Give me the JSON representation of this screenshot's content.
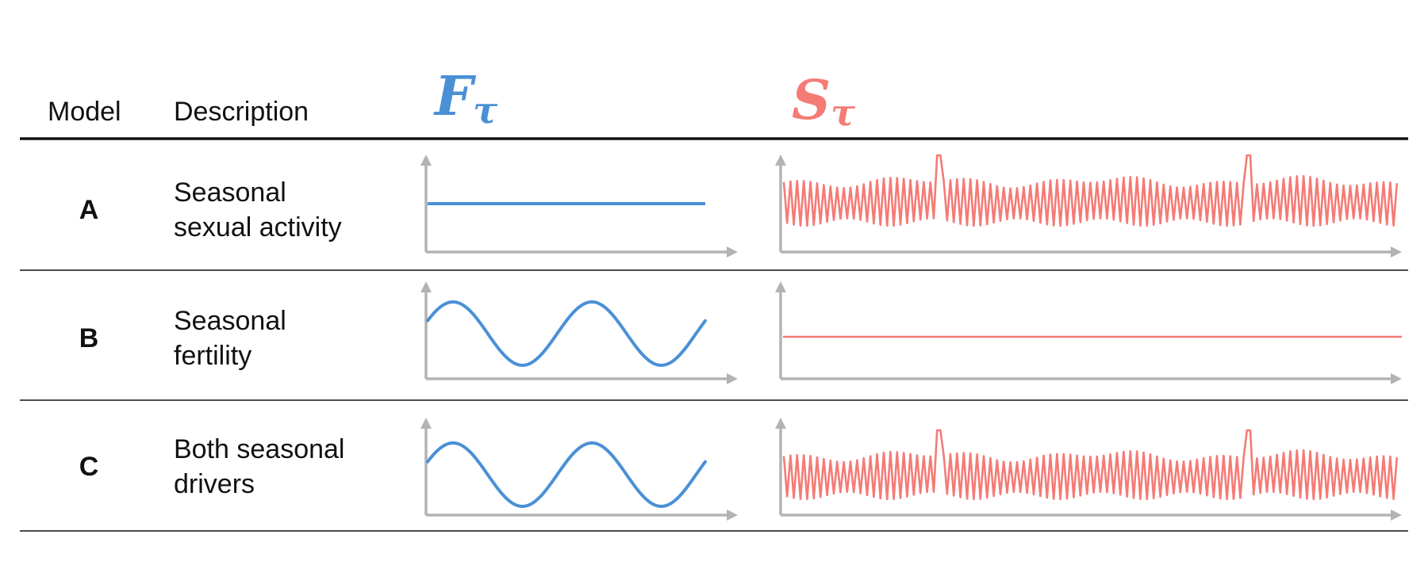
{
  "header": {
    "model": "Model",
    "description": "Description",
    "f_symbol": "F",
    "f_subscript": "τ",
    "s_symbol": "S",
    "s_subscript": "τ"
  },
  "colors": {
    "fertility": "#4a90d6",
    "sexual_activity": "#f47b76",
    "axis": "#b3b3b3",
    "rule": "#111111"
  },
  "rows": [
    {
      "label": "A",
      "description_lines": [
        "Seasonal",
        "sexual activity"
      ],
      "fertility": "constant",
      "sexual_activity": "oscillating"
    },
    {
      "label": "B",
      "description_lines": [
        "Seasonal",
        "fertility"
      ],
      "fertility": "sinusoidal",
      "sexual_activity": "constant"
    },
    {
      "label": "C",
      "description_lines": [
        "Both seasonal",
        "drivers"
      ],
      "fertility": "sinusoidal",
      "sexual_activity": "oscillating"
    }
  ]
}
